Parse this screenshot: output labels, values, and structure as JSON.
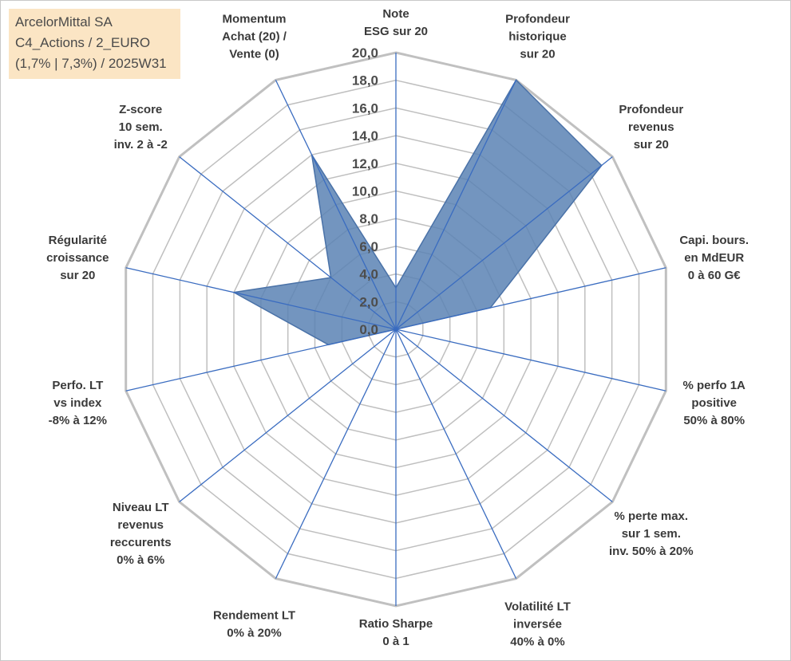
{
  "info": {
    "line1": "ArcelorMittal SA",
    "line2": "C4_Actions / 2_EURO",
    "line3": "(1,7% | 7,3%) / 2025W31"
  },
  "chart_data": {
    "type": "radar",
    "rmax": 20,
    "ticks": [
      "0,0",
      "2,0",
      "4,0",
      "6,0",
      "8,0",
      "10,0",
      "12,0",
      "14,0",
      "16,0",
      "18,0",
      "20,0"
    ],
    "axes": [
      [
        "Note",
        "ESG sur 20"
      ],
      [
        "Profondeur",
        "historique",
        "sur 20"
      ],
      [
        "Profondeur",
        "revenus",
        "sur 20"
      ],
      [
        "Capi. bours.",
        "en MdEUR",
        "0 à 60 G€"
      ],
      [
        "% perfo 1A",
        "positive",
        "50% à 80%"
      ],
      [
        "% perte max.",
        "sur 1 sem.",
        "inv. 50% à 20%"
      ],
      [
        "Volatilité LT",
        "inversée",
        "40% à 0%"
      ],
      [
        "Ratio Sharpe",
        "0 à 1"
      ],
      [
        "Rendement LT",
        "0% à 20%"
      ],
      [
        "Niveau LT",
        "revenus",
        "reccurents",
        "0% à 6%"
      ],
      [
        "Perfo. LT",
        "vs index",
        "-8% à 12%"
      ],
      [
        "Régularité",
        "croissance",
        "sur 20"
      ],
      [
        "Z-score",
        "10 sem.",
        "inv. 2 à -2"
      ],
      [
        "Momentum",
        "Achat (20) /",
        "Vente (0)"
      ]
    ],
    "values": [
      3,
      20,
      19,
      7,
      0,
      0,
      0,
      0,
      0,
      0,
      5,
      12,
      6,
      14
    ],
    "colors": {
      "fill": "#5a82b4",
      "stroke": "#4a72a8",
      "axis": "#3a6cc0",
      "grid": "#bfbfbf",
      "outer": "#c0c0c0"
    }
  }
}
